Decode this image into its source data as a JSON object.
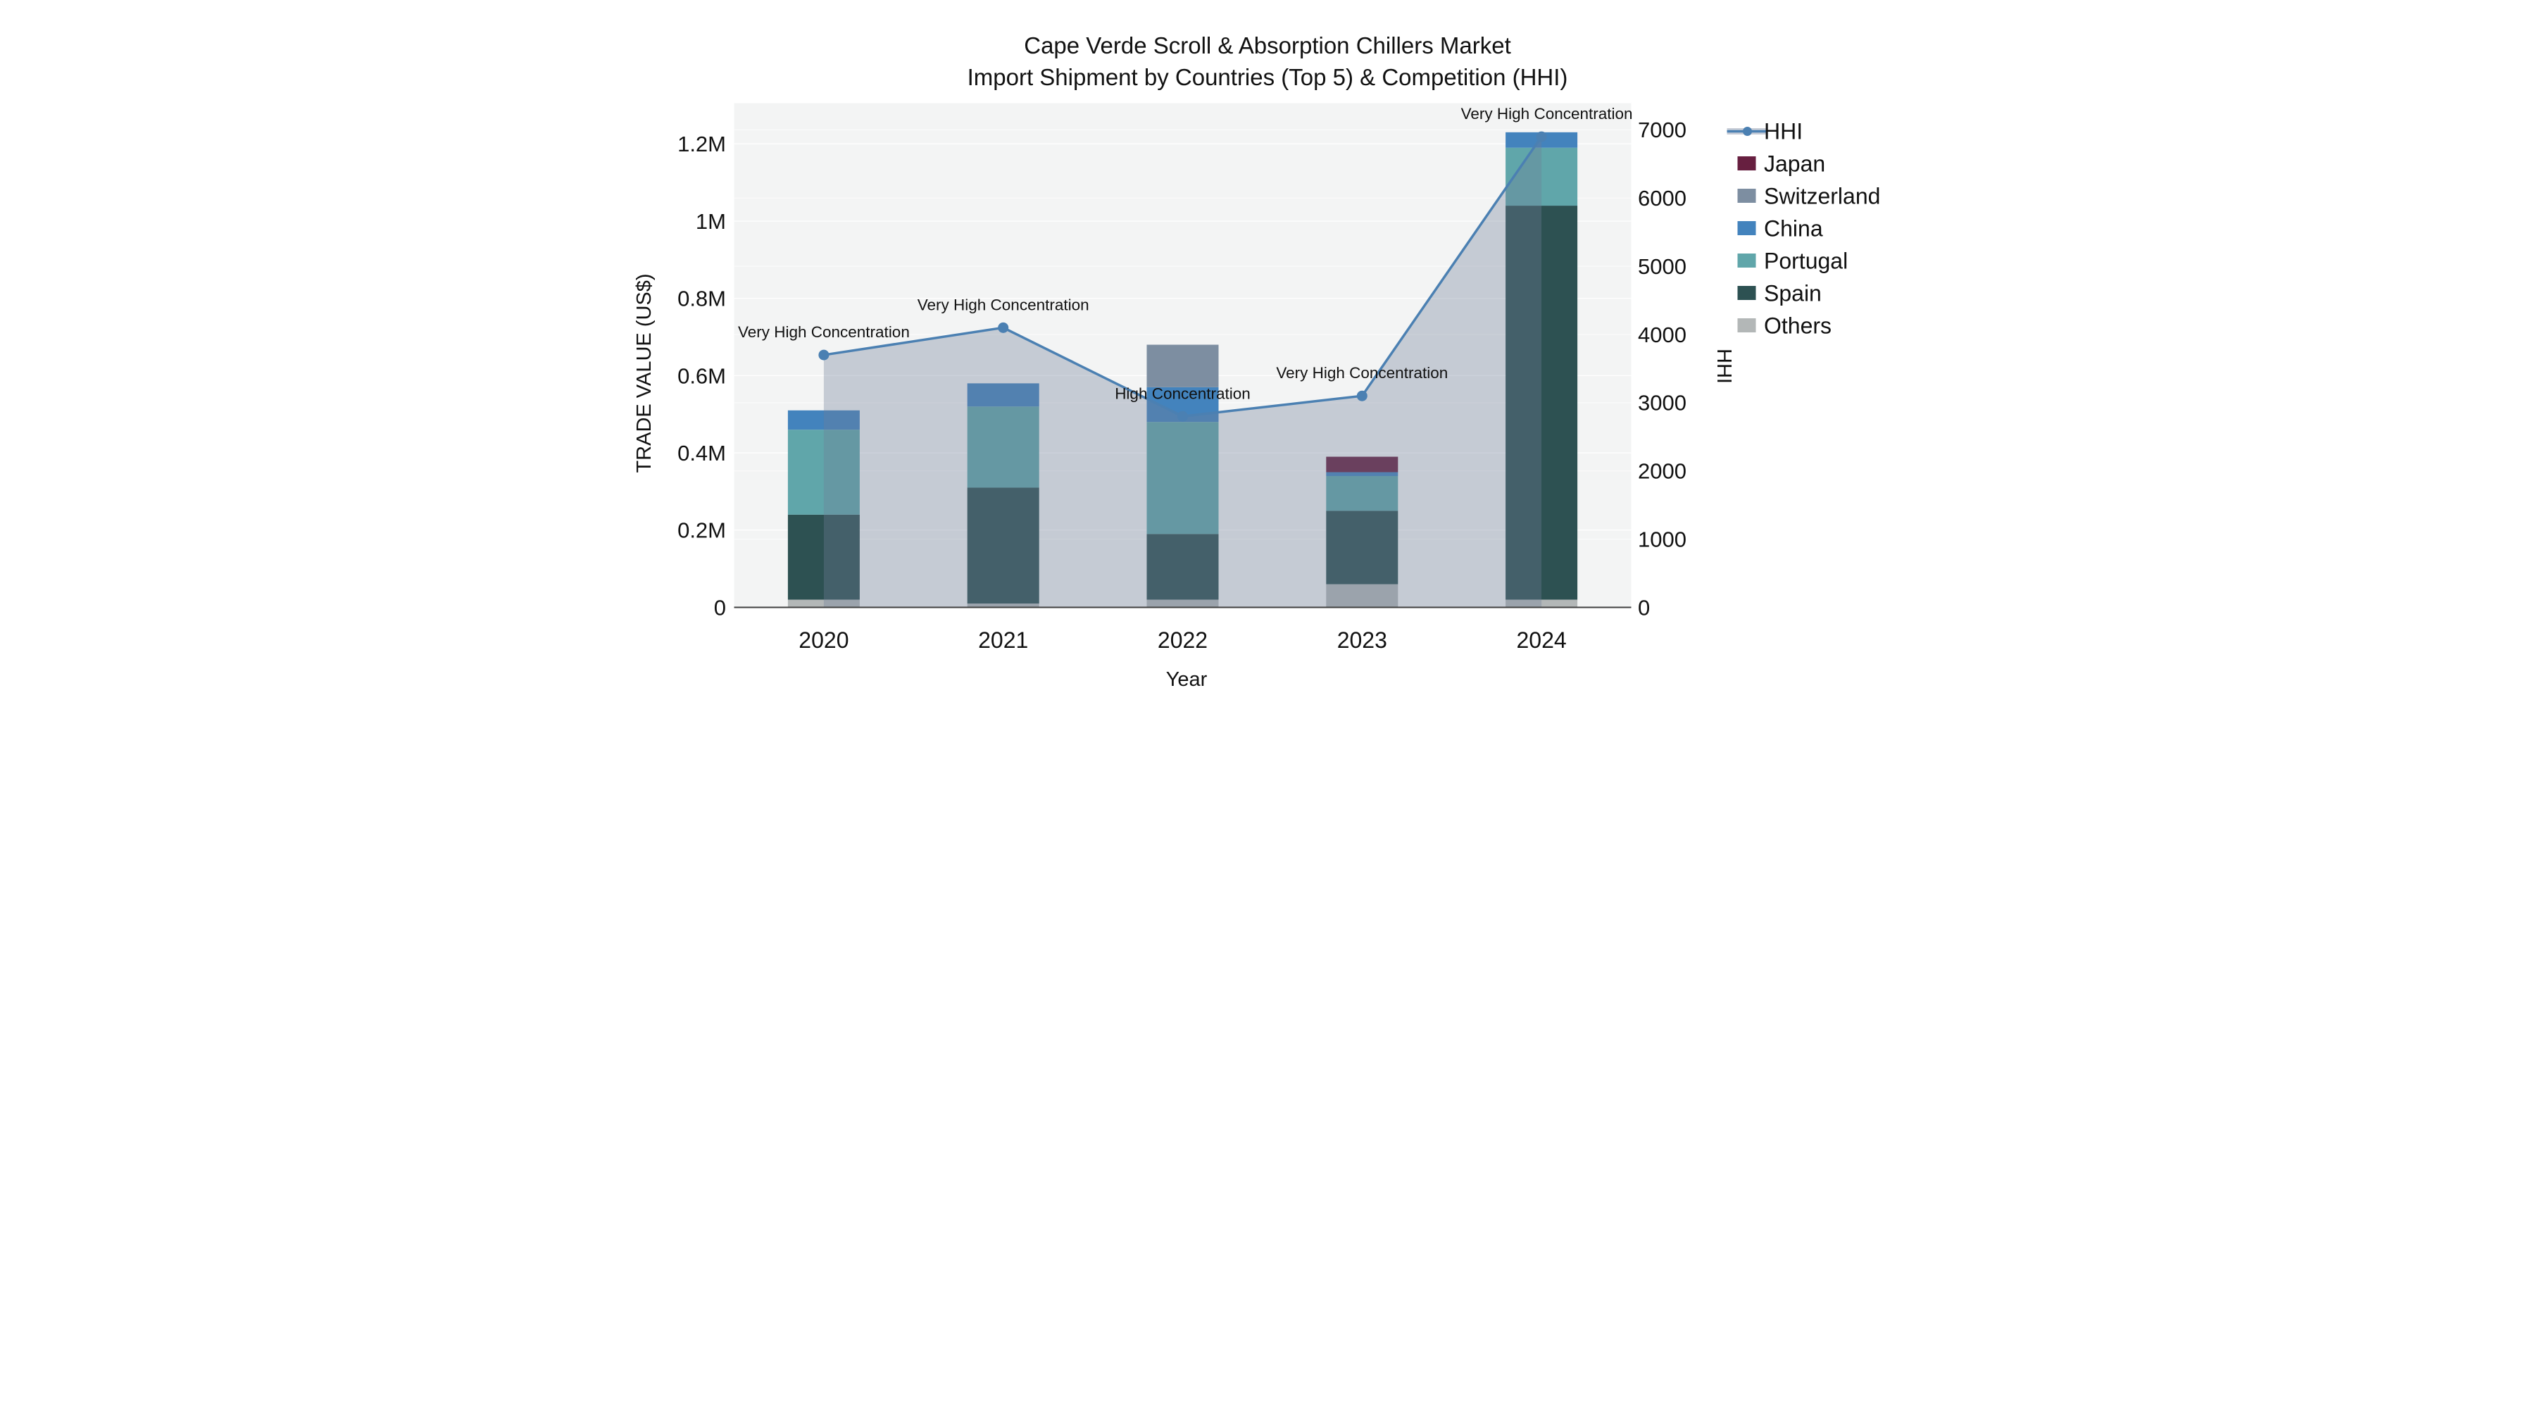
{
  "title": {
    "line1": "Cape Verde Scroll & Absorption Chillers Market",
    "line2": "Import Shipment by Countries (Top 5) & Competition (HHI)"
  },
  "axes": {
    "x": {
      "title": "Year",
      "ticks": [
        "2020",
        "2021",
        "2022",
        "2023",
        "2024"
      ]
    },
    "y_left": {
      "title": "TRADE VALUE (US$)",
      "tick_labels": [
        "0",
        "0.2M",
        "0.4M",
        "0.6M",
        "0.8M",
        "1M",
        "1.2M"
      ],
      "tick_values": [
        0,
        200000,
        400000,
        600000,
        800000,
        1000000,
        1200000
      ]
    },
    "y_right": {
      "title": "HHI",
      "tick_labels": [
        "0",
        "1000",
        "2000",
        "3000",
        "4000",
        "5000",
        "6000",
        "7000"
      ],
      "tick_values": [
        0,
        1000,
        2000,
        3000,
        4000,
        5000,
        6000,
        7000
      ]
    }
  },
  "legend": {
    "items": [
      {
        "label": "HHI",
        "type": "line",
        "color": "#4b80b2"
      },
      {
        "label": "Japan",
        "type": "swatch",
        "color": "#671f40"
      },
      {
        "label": "Switzerland",
        "type": "swatch",
        "color": "#7d8ea1"
      },
      {
        "label": "China",
        "type": "swatch",
        "color": "#4383bd"
      },
      {
        "label": "Portugal",
        "type": "swatch",
        "color": "#60a6aa"
      },
      {
        "label": "Spain",
        "type": "swatch",
        "color": "#2d5152"
      },
      {
        "label": "Others",
        "type": "swatch",
        "color": "#b3b7b7"
      }
    ]
  },
  "colors": {
    "plot_background": "#f3f4f4",
    "grid": "#ffffff",
    "axis_line": "#3f3f3f",
    "hhi_line": "#4b80b2",
    "hhi_area_fill": "rgba(112,126,152,0.35)",
    "legend_hhi_band": "#c7ccd6"
  },
  "chart_data": {
    "type": "combo",
    "subtypes": [
      "stacked-bar",
      "line"
    ],
    "title": "Cape Verde Scroll & Absorption Chillers Market — Import Shipment by Countries (Top 5) & Competition (HHI)",
    "categories": [
      "2020",
      "2021",
      "2022",
      "2023",
      "2024"
    ],
    "xlabel": "Year",
    "ylabel_left": "TRADE VALUE (US$)",
    "ylabel_right": "HHI",
    "ylim_left": [
      0,
      1296000
    ],
    "ylim_right": [
      0,
      7340
    ],
    "grid": true,
    "legend_position": "right",
    "stack_order_bottom_to_top": [
      "Others",
      "Spain",
      "Portugal",
      "China",
      "Switzerland",
      "Japan"
    ],
    "bar_series": [
      {
        "name": "Others",
        "color": "#b3b7b7",
        "values": [
          20000,
          10000,
          20000,
          60000,
          20000
        ]
      },
      {
        "name": "Spain",
        "color": "#2d5152",
        "values": [
          220000,
          300000,
          170000,
          190000,
          1020000
        ]
      },
      {
        "name": "Portugal",
        "color": "#60a6aa",
        "values": [
          220000,
          210000,
          290000,
          90000,
          150000
        ]
      },
      {
        "name": "China",
        "color": "#4383bd",
        "values": [
          50000,
          60000,
          90000,
          10000,
          40000
        ]
      },
      {
        "name": "Switzerland",
        "color": "#7d8ea1",
        "values": [
          0,
          0,
          110000,
          0,
          0
        ]
      },
      {
        "name": "Japan",
        "color": "#671f40",
        "values": [
          0,
          0,
          0,
          40000,
          0
        ]
      }
    ],
    "bar_totals": [
      510000,
      580000,
      680000,
      390000,
      1230000
    ],
    "line_series": {
      "name": "HHI",
      "axis": "right",
      "color": "#4b80b2",
      "values": [
        3700,
        4100,
        2800,
        3100,
        6900
      ]
    },
    "annotations": [
      {
        "category": "2020",
        "text": "Very High Concentration"
      },
      {
        "category": "2021",
        "text": "Very High Concentration"
      },
      {
        "category": "2022",
        "text": "High Concentration"
      },
      {
        "category": "2023",
        "text": "Very High Concentration"
      },
      {
        "category": "2024",
        "text": "Very High Concentration"
      }
    ]
  }
}
